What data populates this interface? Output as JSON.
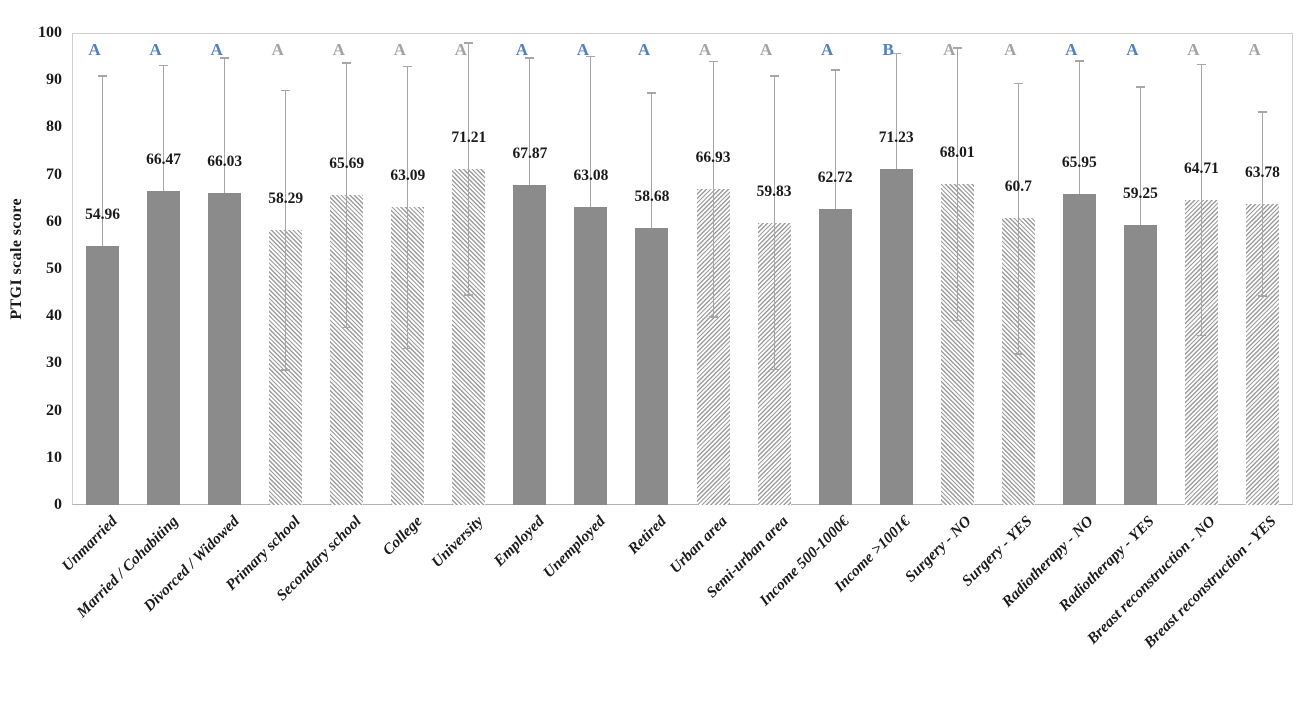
{
  "chart_data": {
    "type": "bar",
    "title": "",
    "xlabel": "",
    "ylabel": "PTGI scale score",
    "ylim": [
      0,
      100
    ],
    "yticks": [
      0,
      10,
      20,
      30,
      40,
      50,
      60,
      70,
      80,
      90,
      100
    ],
    "grid": false,
    "legend_position": "none",
    "error_bars": "standard deviation, caps at ends; lower whisker visible only on hatched bars",
    "colors": {
      "bar_solid": "#8b8b8b",
      "hatch_line": "#9c9c9c",
      "hatch_background": "#ffffff",
      "error_bar": "#a6a6a6",
      "letter_blue": "#4f81bd",
      "letter_gray": "#a3a3a3",
      "text": "#1a1a1a",
      "plot_border": "#cfcfcf",
      "axis_line": "#b3b3b3"
    },
    "bars": [
      {
        "label": "Unmarried",
        "value": 54.96,
        "value_label": "54.96",
        "letter": "A",
        "letter_color": "blue",
        "fill": "solid",
        "err_high": 91.0
      },
      {
        "label": "Married / Cohabiting",
        "value": 66.47,
        "value_label": "66.47",
        "letter": "A",
        "letter_color": "blue",
        "fill": "solid",
        "err_high": 93.3
      },
      {
        "label": "Divorced / Widowed",
        "value": 66.03,
        "value_label": "66.03",
        "letter": "A",
        "letter_color": "blue",
        "fill": "solid",
        "err_high": 94.9
      },
      {
        "label": "Primary school",
        "value": 58.29,
        "value_label": "58.29",
        "letter": "A",
        "letter_color": "gray",
        "fill": "hatch-down",
        "err_high": 88.0,
        "err_low": 28.6
      },
      {
        "label": "Secondary school",
        "value": 65.69,
        "value_label": "65.69",
        "letter": "A",
        "letter_color": "gray",
        "fill": "hatch-down",
        "err_high": 93.8,
        "err_low": 37.6
      },
      {
        "label": "College",
        "value": 63.09,
        "value_label": "63.09",
        "letter": "A",
        "letter_color": "gray",
        "fill": "hatch-down",
        "err_high": 93.1,
        "err_low": 33.1
      },
      {
        "label": "University",
        "value": 71.21,
        "value_label": "71.21",
        "letter": "A",
        "letter_color": "gray",
        "fill": "hatch-down",
        "err_high": 98.0,
        "err_low": 44.4
      },
      {
        "label": "Employed",
        "value": 67.87,
        "value_label": "67.87",
        "letter": "A",
        "letter_color": "blue",
        "fill": "solid",
        "err_high": 94.9
      },
      {
        "label": "Unemployed",
        "value": 63.08,
        "value_label": "63.08",
        "letter": "A",
        "letter_color": "blue",
        "fill": "solid",
        "err_high": 95.2
      },
      {
        "label": "Retired",
        "value": 58.68,
        "value_label": "58.68",
        "letter": "A",
        "letter_color": "blue",
        "fill": "solid",
        "err_high": 87.4
      },
      {
        "label": "Urban area",
        "value": 66.93,
        "value_label": "66.93",
        "letter": "A",
        "letter_color": "gray",
        "fill": "hatch-up",
        "err_high": 94.1,
        "err_low": 39.8
      },
      {
        "label": "Semi-urban area",
        "value": 59.83,
        "value_label": "59.83",
        "letter": "A",
        "letter_color": "gray",
        "fill": "hatch-up",
        "err_high": 91.0,
        "err_low": 28.7
      },
      {
        "label": "Income 500-1000€",
        "value": 62.72,
        "value_label": "62.72",
        "letter": "A",
        "letter_color": "blue",
        "fill": "solid",
        "err_high": 92.3
      },
      {
        "label": "Income >1001€",
        "value": 71.23,
        "value_label": "71.23",
        "letter": "B",
        "letter_color": "blue",
        "fill": "solid",
        "err_high": 95.8
      },
      {
        "label": "Surgery - NO",
        "value": 68.01,
        "value_label": "68.01",
        "letter": "A",
        "letter_color": "gray",
        "fill": "hatch-down",
        "err_high": 97.0,
        "err_low": 39.0
      },
      {
        "label": "Surgery - YES",
        "value": 60.7,
        "value_label": "60.7",
        "letter": "A",
        "letter_color": "gray",
        "fill": "hatch-down",
        "err_high": 89.5,
        "err_low": 31.9
      },
      {
        "label": "Radiotherapy - NO",
        "value": 65.95,
        "value_label": "65.95",
        "letter": "A",
        "letter_color": "blue",
        "fill": "solid",
        "err_high": 94.2
      },
      {
        "label": "Radiotherapy - YES",
        "value": 59.25,
        "value_label": "59.25",
        "letter": "A",
        "letter_color": "blue",
        "fill": "solid",
        "err_high": 88.7
      },
      {
        "label": "Breast reconstruction - NO",
        "value": 64.71,
        "value_label": "64.71",
        "letter": "A",
        "letter_color": "gray",
        "fill": "hatch-up",
        "err_high": 93.5,
        "err_low": 35.9
      },
      {
        "label": "Breast reconstruction - YES",
        "value": 63.78,
        "value_label": "63.78",
        "letter": "A",
        "letter_color": "gray",
        "fill": "hatch-up",
        "err_high": 83.4,
        "err_low": 44.2
      }
    ]
  }
}
